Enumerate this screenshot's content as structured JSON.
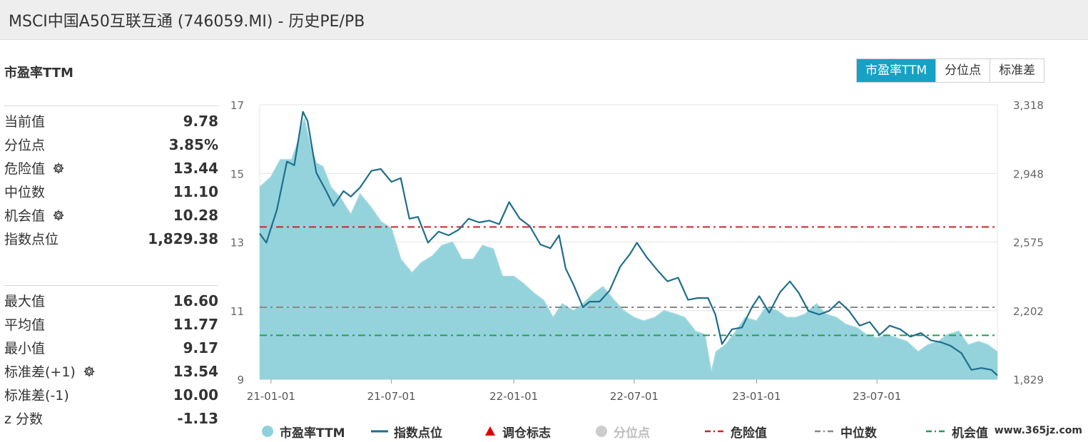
{
  "window": {
    "title": "MSCI中国A50互联互通 (746059.MI) - 历史PE/PB"
  },
  "section_title": "市盈率TTM",
  "tabs": [
    {
      "label": "市盈率TTM",
      "active": true
    },
    {
      "label": "分位点",
      "active": false
    },
    {
      "label": "标准差",
      "active": false
    }
  ],
  "stats_primary": [
    {
      "label": "当前值",
      "value": "9.78",
      "gear": false
    },
    {
      "label": "分位点",
      "value": "3.85%",
      "gear": false
    },
    {
      "label": "危险值",
      "value": "13.44",
      "gear": true
    },
    {
      "label": "中位数",
      "value": "11.10",
      "gear": false
    },
    {
      "label": "机会值",
      "value": "10.28",
      "gear": true
    },
    {
      "label": "指数点位",
      "value": "1,829.38",
      "gear": false
    }
  ],
  "stats_secondary": [
    {
      "label": "最大值",
      "value": "16.60",
      "gear": false
    },
    {
      "label": "平均值",
      "value": "11.77",
      "gear": false
    },
    {
      "label": "最小值",
      "value": "9.17",
      "gear": false
    },
    {
      "label": "标准差(+1)",
      "value": "13.54",
      "gear": true
    },
    {
      "label": "标准差(-1)",
      "value": "10.00",
      "gear": false
    },
    {
      "label": "z 分数",
      "value": "-1.13",
      "gear": false
    }
  ],
  "legend": {
    "pe": "市盈率TTM",
    "index": "指数点位",
    "rebalance": "调仓标志",
    "percentile": "分位点",
    "danger": "危险值",
    "median": "中位数",
    "opportunity": "机会值"
  },
  "watermark": "www.365jz.com",
  "colors": {
    "accent": "#17a2c4",
    "area": "#8ed1da",
    "index_line": "#1f6e8c",
    "danger": "#c62828",
    "median": "#888888",
    "opportunity": "#2a9a57",
    "rebalance": "#e00000",
    "percentile": "#cccccc"
  },
  "chart_data": {
    "type": "area",
    "x_ticks": [
      "21-01-01",
      "21-07-01",
      "22-01-01",
      "22-07-01",
      "23-01-01",
      "23-07-01"
    ],
    "x_tick_dates": [
      "2021-01-01",
      "2021-07-01",
      "2022-01-01",
      "2022-07-01",
      "2023-01-01",
      "2023-07-01"
    ],
    "x_range": [
      "2020-12-15",
      "2023-12-29"
    ],
    "y_left": {
      "ticks": [
        "17",
        "15",
        "13",
        "11",
        "9"
      ],
      "range": [
        9,
        17
      ]
    },
    "y_right": {
      "ticks": [
        "3,318",
        "2,948",
        "2,575",
        "2,202",
        "1,829"
      ],
      "range": [
        1829,
        3318
      ]
    },
    "reference_lines": {
      "danger": 13.44,
      "median": 11.1,
      "opportunity": 10.28
    },
    "series": [
      {
        "name": "市盈率TTM",
        "axis": "left",
        "style": "area",
        "x": [
          "2020-12-15",
          "2021-01-01",
          "2021-01-15",
          "2021-02-01",
          "2021-02-10",
          "2021-02-20",
          "2021-03-01",
          "2021-03-10",
          "2021-03-20",
          "2021-04-01",
          "2021-04-15",
          "2021-05-01",
          "2021-05-15",
          "2021-06-01",
          "2021-06-15",
          "2021-07-01",
          "2021-07-15",
          "2021-08-01",
          "2021-08-15",
          "2021-09-01",
          "2021-09-15",
          "2021-10-01",
          "2021-10-15",
          "2021-11-01",
          "2021-11-15",
          "2021-12-01",
          "2021-12-15",
          "2022-01-01",
          "2022-01-15",
          "2022-02-01",
          "2022-02-15",
          "2022-03-01",
          "2022-03-15",
          "2022-04-01",
          "2022-04-15",
          "2022-05-01",
          "2022-05-15",
          "2022-06-01",
          "2022-06-15",
          "2022-07-01",
          "2022-07-15",
          "2022-08-01",
          "2022-08-15",
          "2022-09-01",
          "2022-09-15",
          "2022-10-01",
          "2022-10-15",
          "2022-10-25",
          "2022-11-01",
          "2022-11-15",
          "2022-12-01",
          "2022-12-15",
          "2023-01-01",
          "2023-01-15",
          "2023-02-01",
          "2023-02-15",
          "2023-03-01",
          "2023-03-15",
          "2023-04-01",
          "2023-04-15",
          "2023-05-01",
          "2023-05-15",
          "2023-06-01",
          "2023-06-15",
          "2023-07-01",
          "2023-07-15",
          "2023-08-01",
          "2023-08-15",
          "2023-09-01",
          "2023-09-15",
          "2023-10-01",
          "2023-10-15",
          "2023-11-01",
          "2023-11-15",
          "2023-12-01",
          "2023-12-15",
          "2023-12-29"
        ],
        "values": [
          14.6,
          14.9,
          15.4,
          15.4,
          15.9,
          16.6,
          15.8,
          15.3,
          15.2,
          14.6,
          14.3,
          13.8,
          14.4,
          14.0,
          13.6,
          13.4,
          12.5,
          12.1,
          12.4,
          12.6,
          12.9,
          13.0,
          12.5,
          12.5,
          12.9,
          12.8,
          12.0,
          12.0,
          11.8,
          11.5,
          11.3,
          10.8,
          11.2,
          11.0,
          11.2,
          11.5,
          11.7,
          11.3,
          11.0,
          10.8,
          10.7,
          10.8,
          11.0,
          10.9,
          10.8,
          10.4,
          10.3,
          9.2,
          9.8,
          10.0,
          10.4,
          10.8,
          10.7,
          11.1,
          11.0,
          10.8,
          10.8,
          10.9,
          11.2,
          10.9,
          10.8,
          10.6,
          10.5,
          10.3,
          10.2,
          10.3,
          10.2,
          10.1,
          9.8,
          10.0,
          10.1,
          10.3,
          10.4,
          10.0,
          10.1,
          10.0,
          9.8
        ]
      },
      {
        "name": "指数点位",
        "axis": "right",
        "style": "line",
        "x": [
          "2020-12-15",
          "2020-12-25",
          "2021-01-10",
          "2021-01-25",
          "2021-02-05",
          "2021-02-18",
          "2021-02-25",
          "2021-03-10",
          "2021-03-25",
          "2021-04-05",
          "2021-04-20",
          "2021-05-01",
          "2021-05-15",
          "2021-06-01",
          "2021-06-15",
          "2021-07-01",
          "2021-07-15",
          "2021-07-28",
          "2021-08-10",
          "2021-08-25",
          "2021-09-10",
          "2021-09-25",
          "2021-10-10",
          "2021-10-25",
          "2021-11-10",
          "2021-11-25",
          "2021-12-10",
          "2021-12-25",
          "2022-01-10",
          "2022-01-25",
          "2022-02-10",
          "2022-02-25",
          "2022-03-10",
          "2022-03-20",
          "2022-04-01",
          "2022-04-15",
          "2022-04-25",
          "2022-05-10",
          "2022-05-25",
          "2022-06-10",
          "2022-06-25",
          "2022-07-05",
          "2022-07-20",
          "2022-08-05",
          "2022-08-20",
          "2022-09-05",
          "2022-09-20",
          "2022-10-05",
          "2022-10-20",
          "2022-10-31",
          "2022-11-10",
          "2022-11-25",
          "2022-12-10",
          "2022-12-25",
          "2023-01-05",
          "2023-01-20",
          "2023-02-05",
          "2023-02-20",
          "2023-03-05",
          "2023-03-20",
          "2023-04-05",
          "2023-04-20",
          "2023-05-05",
          "2023-05-20",
          "2023-06-05",
          "2023-06-20",
          "2023-07-05",
          "2023-07-20",
          "2023-08-05",
          "2023-08-20",
          "2023-09-05",
          "2023-09-20",
          "2023-10-05",
          "2023-10-20",
          "2023-11-05",
          "2023-11-20",
          "2023-12-05",
          "2023-12-20",
          "2023-12-29"
        ],
        "values": [
          2620,
          2570,
          2750,
          3010,
          2990,
          3280,
          3230,
          2950,
          2850,
          2770,
          2850,
          2820,
          2870,
          2960,
          2970,
          2900,
          2920,
          2700,
          2710,
          2570,
          2630,
          2610,
          2640,
          2700,
          2680,
          2690,
          2670,
          2790,
          2700,
          2660,
          2560,
          2540,
          2610,
          2430,
          2340,
          2220,
          2250,
          2250,
          2310,
          2440,
          2510,
          2570,
          2490,
          2420,
          2360,
          2380,
          2260,
          2270,
          2270,
          2180,
          2020,
          2100,
          2110,
          2220,
          2280,
          2190,
          2300,
          2360,
          2300,
          2200,
          2180,
          2200,
          2250,
          2200,
          2120,
          2140,
          2070,
          2120,
          2100,
          2060,
          2080,
          2040,
          2030,
          2010,
          1970,
          1880,
          1890,
          1880,
          1850
        ]
      }
    ]
  }
}
